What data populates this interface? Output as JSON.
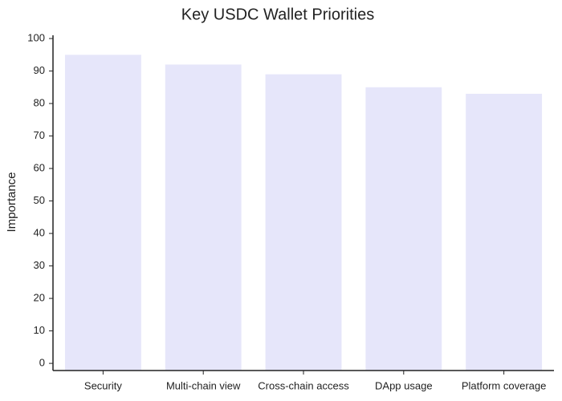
{
  "chart_data": {
    "type": "bar",
    "title": "Key USDC Wallet Priorities",
    "y_label": "Importance",
    "categories": [
      "Security",
      "Multi-chain view",
      "Cross-chain access",
      "DApp usage",
      "Platform coverage"
    ],
    "values": [
      95,
      92,
      89,
      85,
      83
    ],
    "color": "#e6e6fa",
    "ylim": [
      -2.2,
      101
    ],
    "yticks": [
      0,
      10,
      20,
      30,
      40,
      50,
      60,
      70,
      80,
      90,
      100
    ],
    "grid": false
  }
}
